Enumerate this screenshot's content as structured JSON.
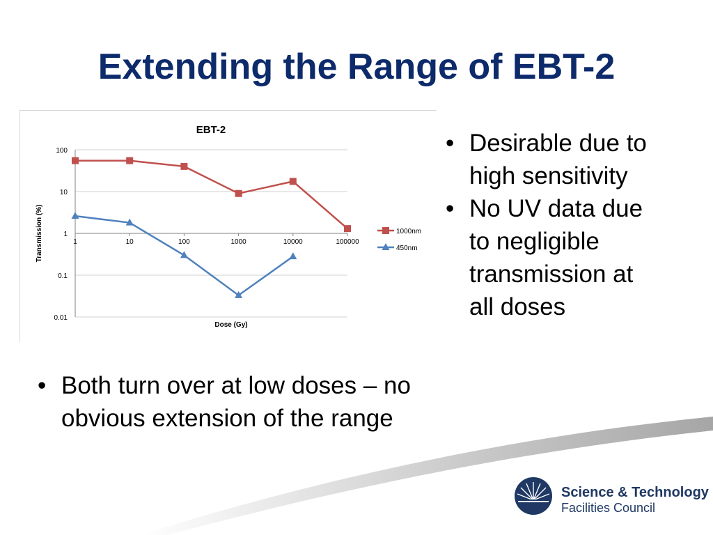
{
  "slide": {
    "title": "Extending the Range of EBT-2"
  },
  "bullets_right": [
    "Desirable due to high sensitivity",
    "No UV data due to negligible transmission at all doses"
  ],
  "bullets_left": [
    "Both turn over at low doses – no obvious extension of the range"
  ],
  "logo": {
    "line1": "Science & Technology",
    "line2": "Facilities Council",
    "icon": "stfc-sunburst-icon"
  },
  "colors": {
    "title": "#0d2a6b",
    "series_1000nm": "#c0504d",
    "series_450nm": "#4f81bd",
    "logo": "#1f3864"
  },
  "chart_data": {
    "type": "line",
    "title": "EBT-2",
    "xlabel": "Dose (Gy)",
    "ylabel": "Transmission (%)",
    "x_scale": "log",
    "y_scale": "log",
    "ylim": [
      0.01,
      100
    ],
    "grid": true,
    "legend_position": "right",
    "x_ticks": [
      "1",
      "10",
      "100",
      "1000",
      "10000",
      "100000"
    ],
    "y_ticks": [
      "100",
      "10",
      "1",
      "0.1",
      "0.01"
    ],
    "series": [
      {
        "name": "1000nm",
        "marker": "square",
        "x": [
          1,
          10,
          100,
          1000,
          10000,
          100000
        ],
        "values": [
          55,
          55,
          40,
          9,
          17.5,
          1.3
        ]
      },
      {
        "name": "450nm",
        "marker": "triangle",
        "x": [
          1,
          10,
          100,
          1000,
          10000
        ],
        "values": [
          2.6,
          1.8,
          0.3,
          0.033,
          0.28
        ]
      }
    ]
  }
}
